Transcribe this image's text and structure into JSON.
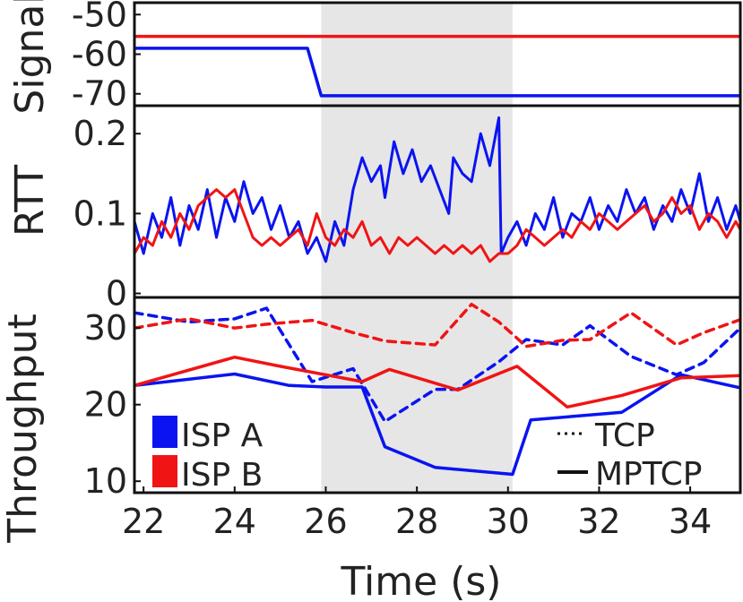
{
  "chart_data": {
    "type": "line",
    "x_label": "Time (s)",
    "xlim": [
      21.8,
      35.1
    ],
    "x_ticks": [
      "22",
      "24",
      "26",
      "28",
      "30",
      "32",
      "34"
    ],
    "shaded_region": [
      25.9,
      30.1
    ],
    "colors": {
      "isp_a": "#0a14f0",
      "isp_b": "#f01414",
      "shade": "#e6e6e6"
    },
    "panels": [
      {
        "id": "signal",
        "ylabel": "Signal",
        "ylim": [
          -73,
          -47
        ],
        "y_ticks": [
          "-50",
          "-60",
          "-70"
        ],
        "series": [
          {
            "name": "ISP A",
            "color": "#0a14f0",
            "style": "solid",
            "x": [
              21.8,
              25.6,
              25.9,
              35.1
            ],
            "y": [
              -58.5,
              -58.5,
              -70.5,
              -70.5
            ]
          },
          {
            "name": "ISP B",
            "color": "#f01414",
            "style": "solid",
            "x": [
              21.8,
              35.1
            ],
            "y": [
              -55.5,
              -55.5
            ]
          }
        ]
      },
      {
        "id": "rtt",
        "ylabel": "RTT",
        "ylim": [
          -0.005,
          0.235
        ],
        "y_ticks": [
          "0",
          "0.1",
          "0.2"
        ],
        "series": [
          {
            "name": "ISP A",
            "color": "#0a14f0",
            "style": "solid",
            "x": [
              21.8,
              22.0,
              22.2,
              22.4,
              22.6,
              22.8,
              23.0,
              23.2,
              23.4,
              23.6,
              23.8,
              24.0,
              24.2,
              24.4,
              24.6,
              24.8,
              25.0,
              25.2,
              25.4,
              25.6,
              25.8,
              26.0,
              26.2,
              26.4,
              26.6,
              26.8,
              27.0,
              27.2,
              27.3,
              27.5,
              27.7,
              27.9,
              28.1,
              28.3,
              28.5,
              28.7,
              28.8,
              29.0,
              29.2,
              29.4,
              29.6,
              29.8,
              29.85,
              30.0,
              30.2,
              30.4,
              30.6,
              30.8,
              31.0,
              31.2,
              31.4,
              31.6,
              31.8,
              32.0,
              32.2,
              32.4,
              32.6,
              32.8,
              33.0,
              33.2,
              33.4,
              33.6,
              33.8,
              34.0,
              34.2,
              34.4,
              34.6,
              34.8,
              35.0,
              35.1
            ],
            "y": [
              0.09,
              0.05,
              0.1,
              0.07,
              0.12,
              0.06,
              0.11,
              0.08,
              0.13,
              0.07,
              0.12,
              0.09,
              0.14,
              0.1,
              0.12,
              0.08,
              0.11,
              0.07,
              0.09,
              0.05,
              0.07,
              0.04,
              0.09,
              0.06,
              0.13,
              0.17,
              0.14,
              0.16,
              0.12,
              0.19,
              0.15,
              0.18,
              0.14,
              0.16,
              0.13,
              0.1,
              0.17,
              0.15,
              0.14,
              0.2,
              0.16,
              0.22,
              0.05,
              0.07,
              0.09,
              0.06,
              0.1,
              0.08,
              0.12,
              0.07,
              0.1,
              0.09,
              0.12,
              0.08,
              0.11,
              0.09,
              0.13,
              0.1,
              0.12,
              0.08,
              0.11,
              0.09,
              0.13,
              0.1,
              0.15,
              0.09,
              0.12,
              0.08,
              0.11,
              0.09
            ]
          },
          {
            "name": "ISP B",
            "color": "#f01414",
            "style": "solid",
            "x": [
              21.8,
              22.0,
              22.2,
              22.4,
              22.6,
              22.8,
              23.0,
              23.2,
              23.4,
              23.6,
              23.8,
              24.0,
              24.2,
              24.4,
              24.6,
              24.8,
              25.0,
              25.2,
              25.4,
              25.6,
              25.8,
              26.0,
              26.2,
              26.4,
              26.6,
              26.8,
              27.0,
              27.2,
              27.4,
              27.6,
              27.8,
              28.0,
              28.2,
              28.4,
              28.6,
              28.8,
              29.0,
              29.2,
              29.4,
              29.6,
              29.8,
              30.0,
              30.2,
              30.4,
              30.6,
              30.8,
              31.0,
              31.2,
              31.4,
              31.6,
              31.8,
              32.0,
              32.2,
              32.4,
              32.6,
              32.8,
              33.0,
              33.2,
              33.4,
              33.6,
              33.8,
              34.0,
              34.2,
              34.4,
              34.6,
              34.8,
              35.0,
              35.1
            ],
            "y": [
              0.05,
              0.07,
              0.06,
              0.09,
              0.07,
              0.1,
              0.08,
              0.11,
              0.12,
              0.13,
              0.12,
              0.13,
              0.1,
              0.07,
              0.06,
              0.07,
              0.06,
              0.07,
              0.08,
              0.06,
              0.1,
              0.07,
              0.06,
              0.08,
              0.07,
              0.09,
              0.06,
              0.07,
              0.05,
              0.07,
              0.06,
              0.07,
              0.06,
              0.05,
              0.06,
              0.05,
              0.06,
              0.05,
              0.06,
              0.04,
              0.05,
              0.05,
              0.06,
              0.08,
              0.07,
              0.06,
              0.07,
              0.08,
              0.07,
              0.09,
              0.08,
              0.1,
              0.09,
              0.08,
              0.09,
              0.1,
              0.11,
              0.09,
              0.1,
              0.12,
              0.1,
              0.11,
              0.08,
              0.1,
              0.09,
              0.07,
              0.09,
              0.08
            ]
          }
        ]
      },
      {
        "id": "throughput",
        "ylabel": "Throughput",
        "ylim": [
          8.5,
          34
        ],
        "y_ticks": [
          "10",
          "20",
          "30"
        ],
        "series": [
          {
            "name": "ISP A TCP",
            "color": "#0a14f0",
            "style": "dashed",
            "x": [
              21.8,
              23.0,
              24.0,
              24.7,
              25.7,
              26.6,
              27.3,
              28.4,
              28.9,
              29.8,
              30.4,
              31.2,
              31.8,
              32.7,
              33.7,
              34.3,
              35.1
            ],
            "y": [
              32.0,
              30.8,
              31.2,
              32.6,
              23.0,
              24.7,
              17.8,
              22.0,
              22.0,
              25.6,
              28.5,
              27.8,
              30.3,
              26.3,
              23.9,
              25.5,
              30.0
            ]
          },
          {
            "name": "ISP B TCP",
            "color": "#f01414",
            "style": "dashed",
            "x": [
              21.8,
              23.0,
              24.0,
              24.7,
              25.7,
              26.6,
              27.3,
              28.4,
              29.2,
              29.8,
              30.4,
              31.2,
              31.8,
              32.7,
              33.7,
              34.3,
              35.1
            ],
            "y": [
              30.0,
              31.2,
              30.0,
              30.5,
              31.0,
              29.4,
              28.3,
              27.8,
              33.1,
              30.8,
              27.6,
              28.4,
              28.5,
              32.0,
              27.8,
              29.4,
              31.1
            ]
          },
          {
            "name": "ISP A MPTCP",
            "color": "#0a14f0",
            "style": "solid",
            "x": [
              21.8,
              24.0,
              25.2,
              26.0,
              26.8,
              27.3,
              28.4,
              30.1,
              30.5,
              32.5,
              33.8,
              35.1
            ],
            "y": [
              22.5,
              24.0,
              22.5,
              22.3,
              22.3,
              14.5,
              11.8,
              10.9,
              18.0,
              19.0,
              23.9,
              22.2
            ]
          },
          {
            "name": "ISP B MPTCP",
            "color": "#f01414",
            "style": "solid",
            "x": [
              21.8,
              24.0,
              25.0,
              26.8,
              27.4,
              28.9,
              30.2,
              31.3,
              32.5,
              33.8,
              35.1
            ],
            "y": [
              22.5,
              26.2,
              25.0,
              23.0,
              24.6,
              21.9,
              25.0,
              19.7,
              21.2,
              23.5,
              23.8
            ]
          }
        ],
        "legend_left": {
          "position": "bottom-left",
          "items": [
            {
              "label": "ISP A",
              "color": "#0a14f0"
            },
            {
              "label": "ISP B",
              "color": "#f01414"
            }
          ]
        },
        "legend_right": {
          "position": "bottom-right",
          "items": [
            {
              "label": "TCP",
              "style": "dotted"
            },
            {
              "label": "MPTCP",
              "style": "solid"
            }
          ]
        }
      }
    ]
  }
}
